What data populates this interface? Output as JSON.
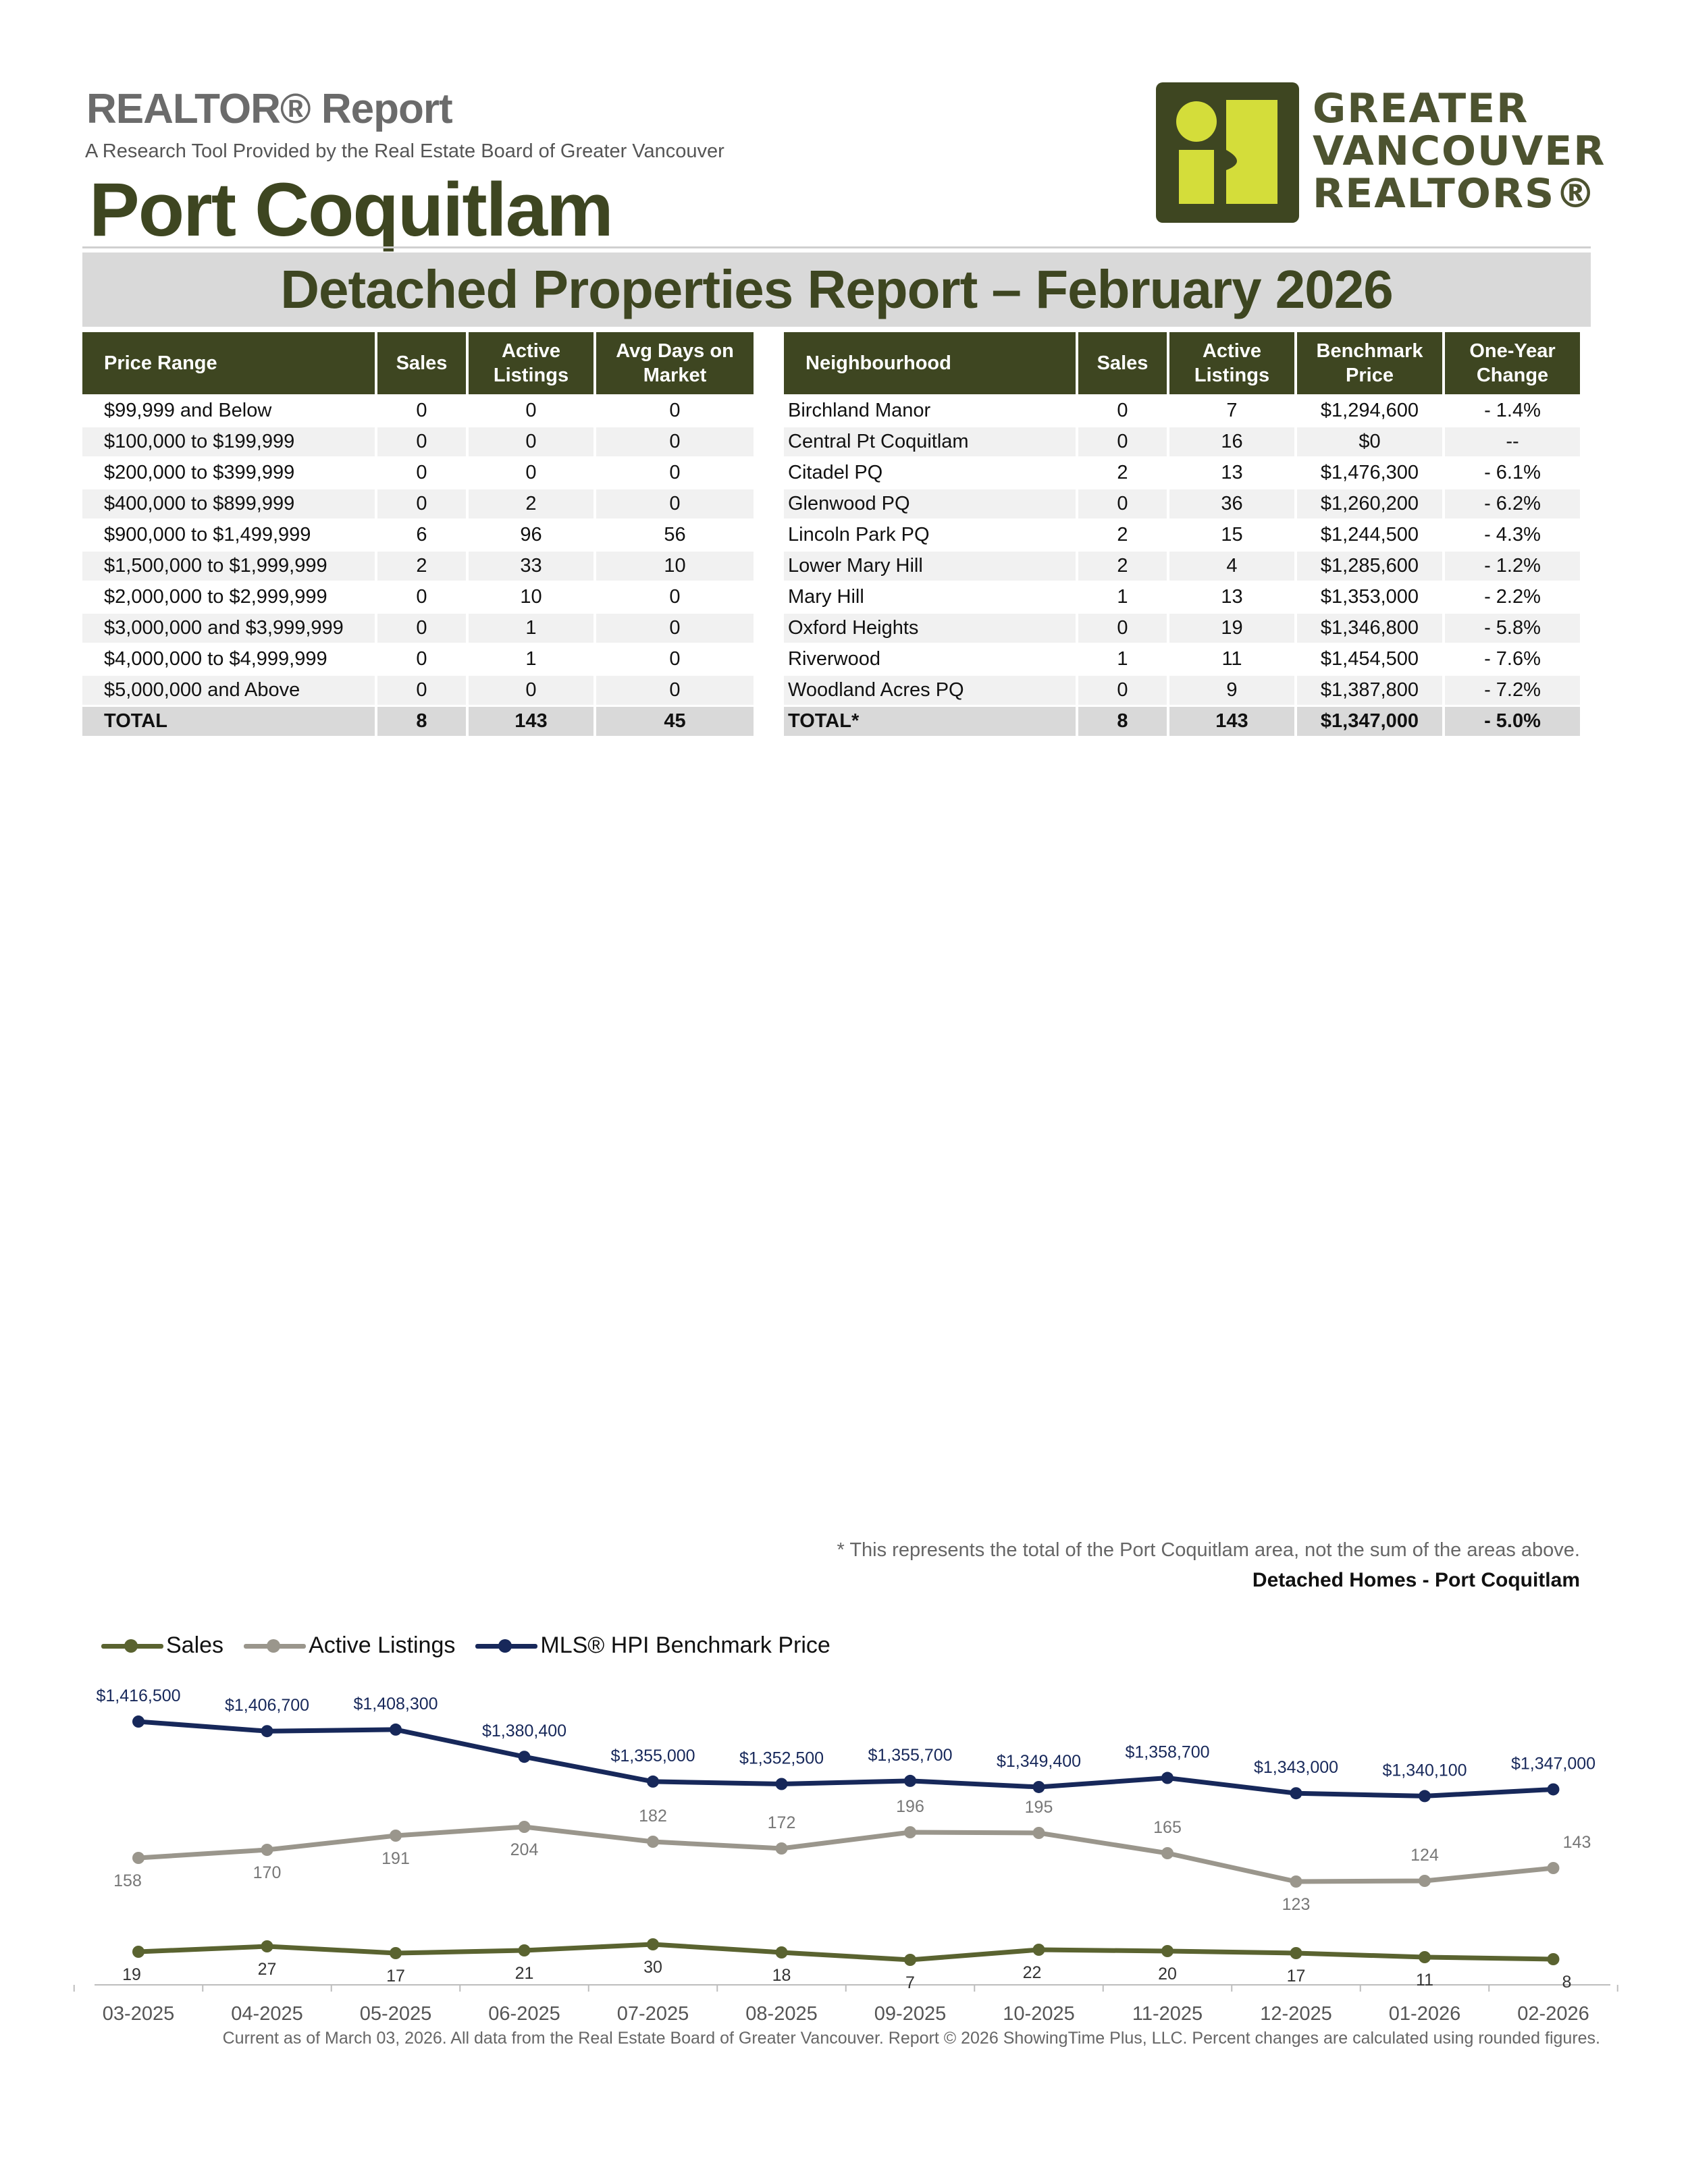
{
  "header": {
    "report_label": "REALTOR® Report",
    "subtitle": "A Research Tool Provided by the Real Estate Board of Greater Vancouver",
    "city": "Port Coquitlam",
    "logo_lines": [
      "GREATER",
      "VANCOUVER",
      "REALTORS®"
    ]
  },
  "title": "Detached Properties Report – February 2026",
  "price_table": {
    "headers": {
      "range": "Price Range",
      "sales": "Sales",
      "active": "Active Listings",
      "days": "Avg Days on Market"
    },
    "rows": [
      {
        "range": "$99,999 and Below",
        "sales": "0",
        "active": "0",
        "days": "0"
      },
      {
        "range": "$100,000 to $199,999",
        "sales": "0",
        "active": "0",
        "days": "0"
      },
      {
        "range": "$200,000 to $399,999",
        "sales": "0",
        "active": "0",
        "days": "0"
      },
      {
        "range": "$400,000 to $899,999",
        "sales": "0",
        "active": "2",
        "days": "0"
      },
      {
        "range": "$900,000 to $1,499,999",
        "sales": "6",
        "active": "96",
        "days": "56"
      },
      {
        "range": "$1,500,000 to $1,999,999",
        "sales": "2",
        "active": "33",
        "days": "10"
      },
      {
        "range": "$2,000,000 to $2,999,999",
        "sales": "0",
        "active": "10",
        "days": "0"
      },
      {
        "range": "$3,000,000 and $3,999,999",
        "sales": "0",
        "active": "1",
        "days": "0"
      },
      {
        "range": "$4,000,000 to $4,999,999",
        "sales": "0",
        "active": "1",
        "days": "0"
      },
      {
        "range": "$5,000,000 and Above",
        "sales": "0",
        "active": "0",
        "days": "0"
      }
    ],
    "total": {
      "range": "TOTAL",
      "sales": "8",
      "active": "143",
      "days": "45"
    }
  },
  "hood_table": {
    "headers": {
      "name": "Neighbourhood",
      "sales": "Sales",
      "active": "Active Listings",
      "price": "Benchmark Price",
      "change": "One-Year Change"
    },
    "rows": [
      {
        "name": "Birchland Manor",
        "sales": "0",
        "active": "7",
        "price": "$1,294,600",
        "change": "- 1.4%"
      },
      {
        "name": "Central Pt Coquitlam",
        "sales": "0",
        "active": "16",
        "price": "$0",
        "change": "--"
      },
      {
        "name": "Citadel PQ",
        "sales": "2",
        "active": "13",
        "price": "$1,476,300",
        "change": "- 6.1%"
      },
      {
        "name": "Glenwood PQ",
        "sales": "0",
        "active": "36",
        "price": "$1,260,200",
        "change": "- 6.2%"
      },
      {
        "name": "Lincoln Park PQ",
        "sales": "2",
        "active": "15",
        "price": "$1,244,500",
        "change": "- 4.3%"
      },
      {
        "name": "Lower Mary Hill",
        "sales": "2",
        "active": "4",
        "price": "$1,285,600",
        "change": "- 1.2%"
      },
      {
        "name": "Mary Hill",
        "sales": "1",
        "active": "13",
        "price": "$1,353,000",
        "change": "- 2.2%"
      },
      {
        "name": "Oxford Heights",
        "sales": "0",
        "active": "19",
        "price": "$1,346,800",
        "change": "- 5.8%"
      },
      {
        "name": "Riverwood",
        "sales": "1",
        "active": "11",
        "price": "$1,454,500",
        "change": "- 7.6%"
      },
      {
        "name": "Woodland Acres PQ",
        "sales": "0",
        "active": "9",
        "price": "$1,387,800",
        "change": "- 7.2%"
      }
    ],
    "total": {
      "name": "TOTAL*",
      "sales": "8",
      "active": "143",
      "price": "$1,347,000",
      "change": "- 5.0%"
    }
  },
  "footnote": "* This represents the total of the Port Coquitlam area, not the sum of the areas above.",
  "bottom_note": "Current as of March 03, 2026. All data from the Real Estate Board of Greater Vancouver.  Report © 2026 ShowingTime Plus, LLC. Percent changes are calculated using rounded figures.",
  "colors": {
    "olive": "#3e4621",
    "sales": "#5a6330",
    "active": "#9a968c",
    "hpi": "#17285a",
    "logo_accent": "#d4dd3a"
  },
  "chart_data": {
    "type": "line",
    "title": "Detached Homes - Port Coquitlam",
    "categories": [
      "03-2025",
      "04-2025",
      "05-2025",
      "06-2025",
      "07-2025",
      "08-2025",
      "09-2025",
      "10-2025",
      "11-2025",
      "12-2025",
      "01-2026",
      "02-2026"
    ],
    "series": [
      {
        "name": "Sales",
        "values": [
          19,
          27,
          17,
          21,
          30,
          18,
          7,
          22,
          20,
          17,
          11,
          8
        ],
        "labels": [
          "19",
          "27",
          "17",
          "21",
          "30",
          "18",
          "7",
          "22",
          "20",
          "17",
          "11",
          "8"
        ]
      },
      {
        "name": "Active Listings",
        "values": [
          158,
          170,
          191,
          204,
          182,
          172,
          196,
          195,
          165,
          123,
          124,
          143
        ],
        "labels": [
          "158",
          "170",
          "191",
          "204",
          "182",
          "172",
          "196",
          "195",
          "165",
          "123",
          "124",
          "143"
        ]
      },
      {
        "name": "MLS® HPI Benchmark Price",
        "values": [
          1416500,
          1406700,
          1408300,
          1380400,
          1355000,
          1352500,
          1355700,
          1349400,
          1358700,
          1343000,
          1340100,
          1347000
        ],
        "labels": [
          "$1,416,500",
          "$1,406,700",
          "$1,408,300",
          "$1,380,400",
          "$1,355,000",
          "$1,352,500",
          "$1,355,700",
          "$1,349,400",
          "$1,358,700",
          "$1,343,000",
          "$1,340,100",
          "$1,347,000"
        ]
      }
    ],
    "grid": false,
    "legend": "top-left"
  }
}
